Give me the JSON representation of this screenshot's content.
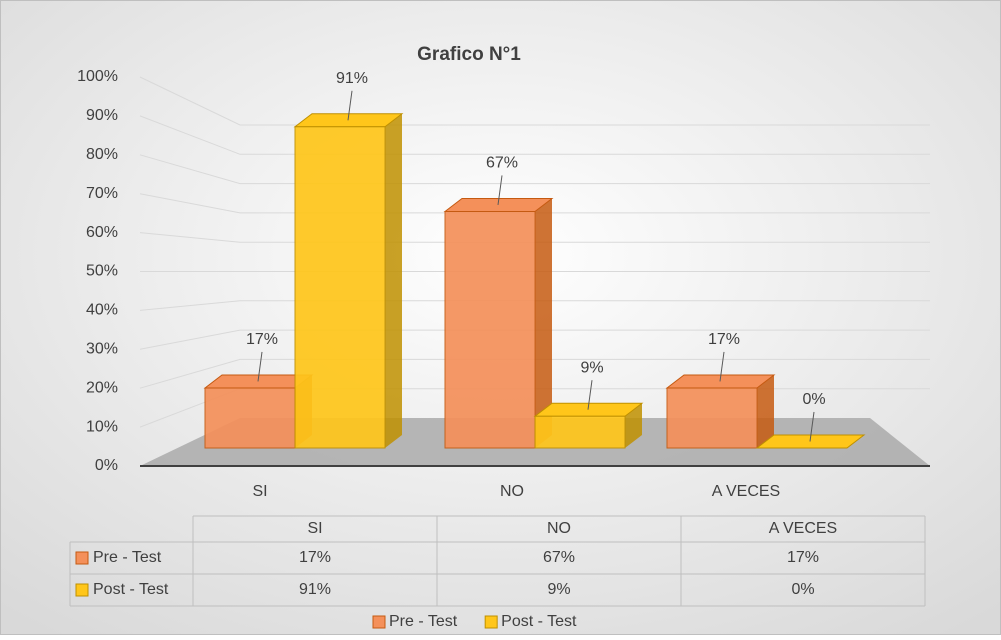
{
  "chart_data": {
    "type": "bar3d",
    "title": "Grafico N°1",
    "categories": [
      "SI",
      "NO",
      "A VECES"
    ],
    "series": [
      {
        "name": "Pre - Test",
        "color": "#f4905a",
        "values": [
          17,
          67,
          17
        ],
        "value_labels": [
          "17%",
          "67%",
          "17%"
        ]
      },
      {
        "name": "Post - Test",
        "color": "#ffc61a",
        "values": [
          91,
          9,
          0
        ],
        "value_labels": [
          "91%",
          "9%",
          "0%"
        ]
      }
    ],
    "ylim": [
      0,
      100
    ],
    "yticks": [
      {
        "value": 0,
        "label": "0%"
      },
      {
        "value": 10,
        "label": "10%"
      },
      {
        "value": 20,
        "label": "20%"
      },
      {
        "value": 30,
        "label": "30%"
      },
      {
        "value": 40,
        "label": "40%"
      },
      {
        "value": 50,
        "label": "50%"
      },
      {
        "value": 60,
        "label": "60%"
      },
      {
        "value": 70,
        "label": "70%"
      },
      {
        "value": 80,
        "label": "80%"
      },
      {
        "value": 90,
        "label": "90%"
      },
      {
        "value": 100,
        "label": "100%"
      }
    ],
    "grid": true,
    "legend": "bottom",
    "data_table": true
  }
}
